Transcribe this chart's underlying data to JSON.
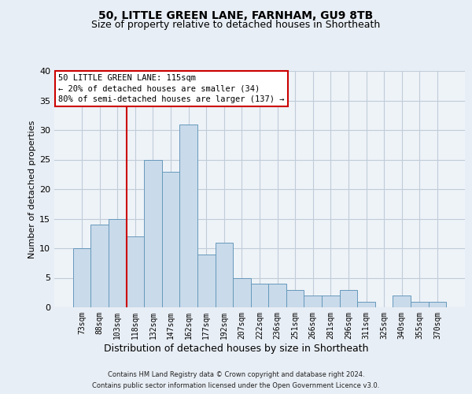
{
  "title1": "50, LITTLE GREEN LANE, FARNHAM, GU9 8TB",
  "title2": "Size of property relative to detached houses in Shortheath",
  "xlabel": "Distribution of detached houses by size in Shortheath",
  "ylabel": "Number of detached properties",
  "categories": [
    "73sqm",
    "88sqm",
    "103sqm",
    "118sqm",
    "132sqm",
    "147sqm",
    "162sqm",
    "177sqm",
    "192sqm",
    "207sqm",
    "222sqm",
    "236sqm",
    "251sqm",
    "266sqm",
    "281sqm",
    "296sqm",
    "311sqm",
    "325sqm",
    "340sqm",
    "355sqm",
    "370sqm"
  ],
  "values": [
    10,
    14,
    15,
    12,
    25,
    23,
    31,
    9,
    11,
    5,
    4,
    4,
    3,
    2,
    2,
    3,
    1,
    0,
    2,
    1,
    1
  ],
  "bar_color": "#c9daea",
  "bar_edge_color": "#6699bb",
  "vline_color": "#cc0000",
  "vline_position": 2.5,
  "ylim_max": 40,
  "yticks": [
    0,
    5,
    10,
    15,
    20,
    25,
    30,
    35,
    40
  ],
  "annotation_line1": "50 LITTLE GREEN LANE: 115sqm",
  "annotation_line2": "← 20% of detached houses are smaller (34)",
  "annotation_line3": "80% of semi-detached houses are larger (137) →",
  "annotation_box_edge": "#cc0000",
  "footer1": "Contains HM Land Registry data © Crown copyright and database right 2024.",
  "footer2": "Contains public sector information licensed under the Open Government Licence v3.0.",
  "bg_color": "#e8eef5",
  "plot_bg_color": "#eef3f8",
  "grid_color": "#c0ccd8",
  "title_fontsize": 10,
  "subtitle_fontsize": 9,
  "ylabel_fontsize": 8,
  "xlabel_fontsize": 9,
  "tick_fontsize": 7,
  "ytick_fontsize": 8,
  "annotation_fontsize": 7.5,
  "footer_fontsize": 6
}
